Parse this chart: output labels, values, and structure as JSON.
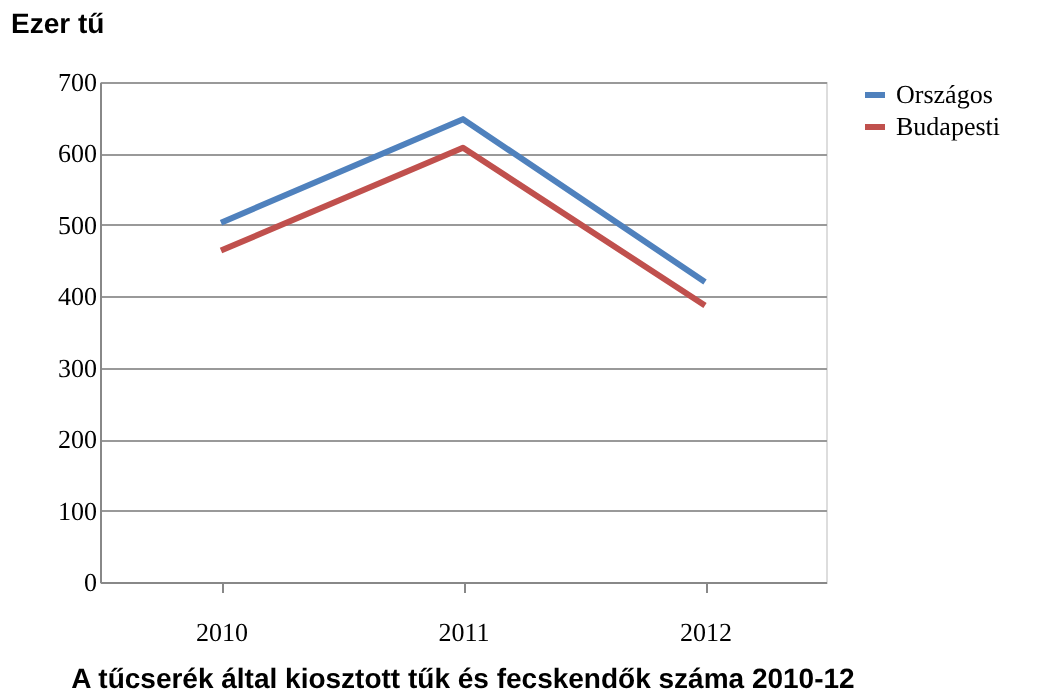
{
  "chart_data": {
    "type": "line",
    "title": "A tűcserék által kiosztott tűk és fecskendők száma 2010-12",
    "ylabel": "Ezer tű",
    "categories": [
      "2010",
      "2011",
      "2012"
    ],
    "series": [
      {
        "name": "Országos",
        "color": "#4f81bd",
        "values": [
          503,
          648,
          420
        ]
      },
      {
        "name": "Budapesti",
        "color": "#c0504d",
        "values": [
          464,
          608,
          387
        ]
      }
    ],
    "ylim": [
      0,
      700
    ],
    "yticks": [
      0,
      100,
      200,
      300,
      400,
      500,
      600,
      700
    ],
    "grid": "y",
    "legend": "right",
    "marker": "none",
    "line_style": "solid"
  }
}
